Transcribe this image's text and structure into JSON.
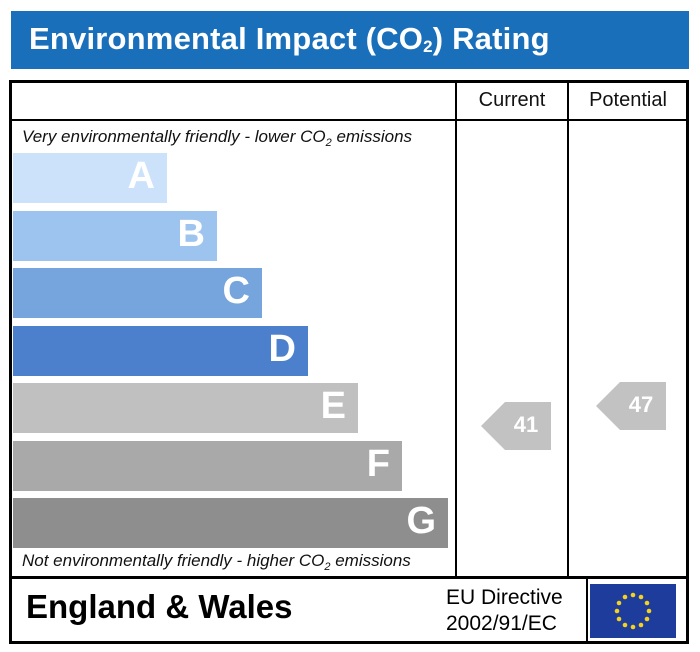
{
  "header": {
    "title_main": "Environmental Impact (CO",
    "title_sub": "2",
    "title_tail": ") Rating"
  },
  "columns": {
    "current": "Current",
    "potential": "Potential"
  },
  "captions": {
    "top_main": "Very environmentally friendly - lower CO",
    "top_sub": "2",
    "top_tail": " emissions",
    "bottom_main": "Not environmentally friendly - higher CO",
    "bottom_sub": "2",
    "bottom_tail": " emissions"
  },
  "footer": {
    "region": "England & Wales",
    "directive_line1": "EU Directive",
    "directive_line2": "2002/91/EC"
  },
  "chart_data": {
    "type": "bar",
    "categories": [
      "A",
      "B",
      "C",
      "D",
      "E",
      "F",
      "G"
    ],
    "band_colors": [
      "#cce2fb",
      "#9dc4ef",
      "#75a5dc",
      "#4d80cc",
      "#c0c0c0",
      "#a9a9a9",
      "#8e8e8e"
    ],
    "current": {
      "value": 41,
      "color": "#c2c2c2"
    },
    "potential": {
      "value": 47,
      "color": "#c2c2c2"
    }
  }
}
